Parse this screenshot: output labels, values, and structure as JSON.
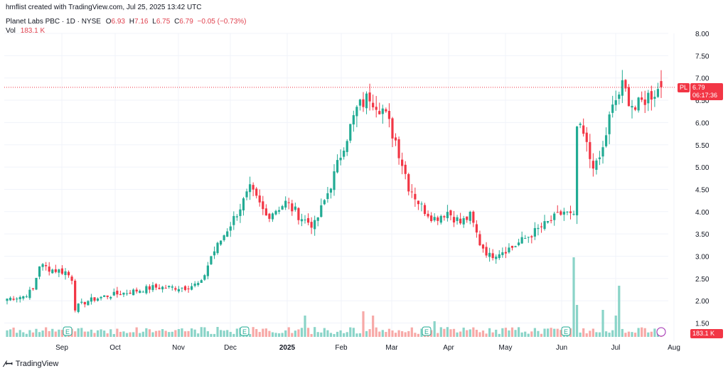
{
  "header": {
    "created": "hmflist created with TradingView.com, Jul 25, 2025 13:42 UTC",
    "symbol": "Planet Labs PBC · 1D · NYSE",
    "o_label": "O",
    "o": "6.93",
    "h_label": "H",
    "h": "7.16",
    "l_label": "L",
    "l": "6.75",
    "c_label": "C",
    "c": "6.79",
    "change": "−0.05 (−0.73%)",
    "vol_label": "Vol",
    "vol": "183.1 K"
  },
  "price_tag": {
    "ticker": "PL",
    "price": "6.79",
    "countdown": "06:17:36"
  },
  "volume_tag": "183.1 K",
  "footer": {
    "brand": "TradingView"
  },
  "colors": {
    "up": "#22ab94",
    "down": "#f23645",
    "up_vol": "#8ad4c8",
    "down_vol": "#f7a9a7"
  },
  "chart_data": {
    "type": "candlestick",
    "ylim": [
      1.2,
      8.25
    ],
    "y_ticks": [
      "8.00",
      "7.50",
      "7.00",
      "6.50",
      "6.00",
      "5.50",
      "5.00",
      "4.50",
      "4.00",
      "3.50",
      "3.00",
      "2.50",
      "2.00",
      "1.50"
    ],
    "x_ticks": [
      "Sep",
      "Oct",
      "Nov",
      "Dec",
      "2025",
      "Feb",
      "Mar",
      "Apr",
      "May",
      "Jun",
      "Jul",
      "Aug"
    ],
    "event_markers": [
      {
        "label": "E",
        "date": "Sep"
      },
      {
        "label": "E",
        "date": "Dec"
      },
      {
        "label": "E",
        "date": "Mar"
      },
      {
        "label": "E",
        "date": "Jun"
      }
    ],
    "keypoints": [
      [
        0,
        2.05
      ],
      [
        5,
        2.1
      ],
      [
        8,
        2.25
      ],
      [
        10,
        2.8
      ],
      [
        14,
        2.7
      ],
      [
        18,
        2.65
      ],
      [
        20,
        2.5
      ],
      [
        21,
        1.85
      ],
      [
        25,
        2.0
      ],
      [
        30,
        2.1
      ],
      [
        38,
        2.2
      ],
      [
        45,
        2.3
      ],
      [
        55,
        2.3
      ],
      [
        60,
        2.4
      ],
      [
        63,
        3.0
      ],
      [
        68,
        3.6
      ],
      [
        72,
        4.1
      ],
      [
        75,
        4.5
      ],
      [
        80,
        3.9
      ],
      [
        86,
        4.2
      ],
      [
        92,
        3.8
      ],
      [
        95,
        3.7
      ],
      [
        100,
        4.6
      ],
      [
        104,
        5.5
      ],
      [
        108,
        6.3
      ],
      [
        112,
        6.6
      ],
      [
        116,
        6.3
      ],
      [
        120,
        5.6
      ],
      [
        124,
        4.6
      ],
      [
        128,
        4.1
      ],
      [
        132,
        3.85
      ],
      [
        136,
        4.0
      ],
      [
        140,
        3.75
      ],
      [
        143,
        3.9
      ],
      [
        146,
        3.3
      ],
      [
        149,
        3.0
      ],
      [
        152,
        3.1
      ],
      [
        156,
        3.2
      ],
      [
        160,
        3.4
      ],
      [
        164,
        3.6
      ],
      [
        168,
        3.8
      ],
      [
        172,
        4.0
      ],
      [
        175,
        3.85
      ],
      [
        176,
        5.9
      ],
      [
        178,
        5.7
      ],
      [
        180,
        5.2
      ],
      [
        182,
        5.0
      ],
      [
        184,
        5.4
      ],
      [
        186,
        6.1
      ],
      [
        188,
        6.5
      ],
      [
        190,
        6.8
      ],
      [
        194,
        6.3
      ],
      [
        198,
        6.6
      ],
      [
        202,
        6.79
      ]
    ],
    "last": {
      "o": 6.93,
      "h": 7.16,
      "l": 6.75,
      "c": 6.79
    }
  }
}
